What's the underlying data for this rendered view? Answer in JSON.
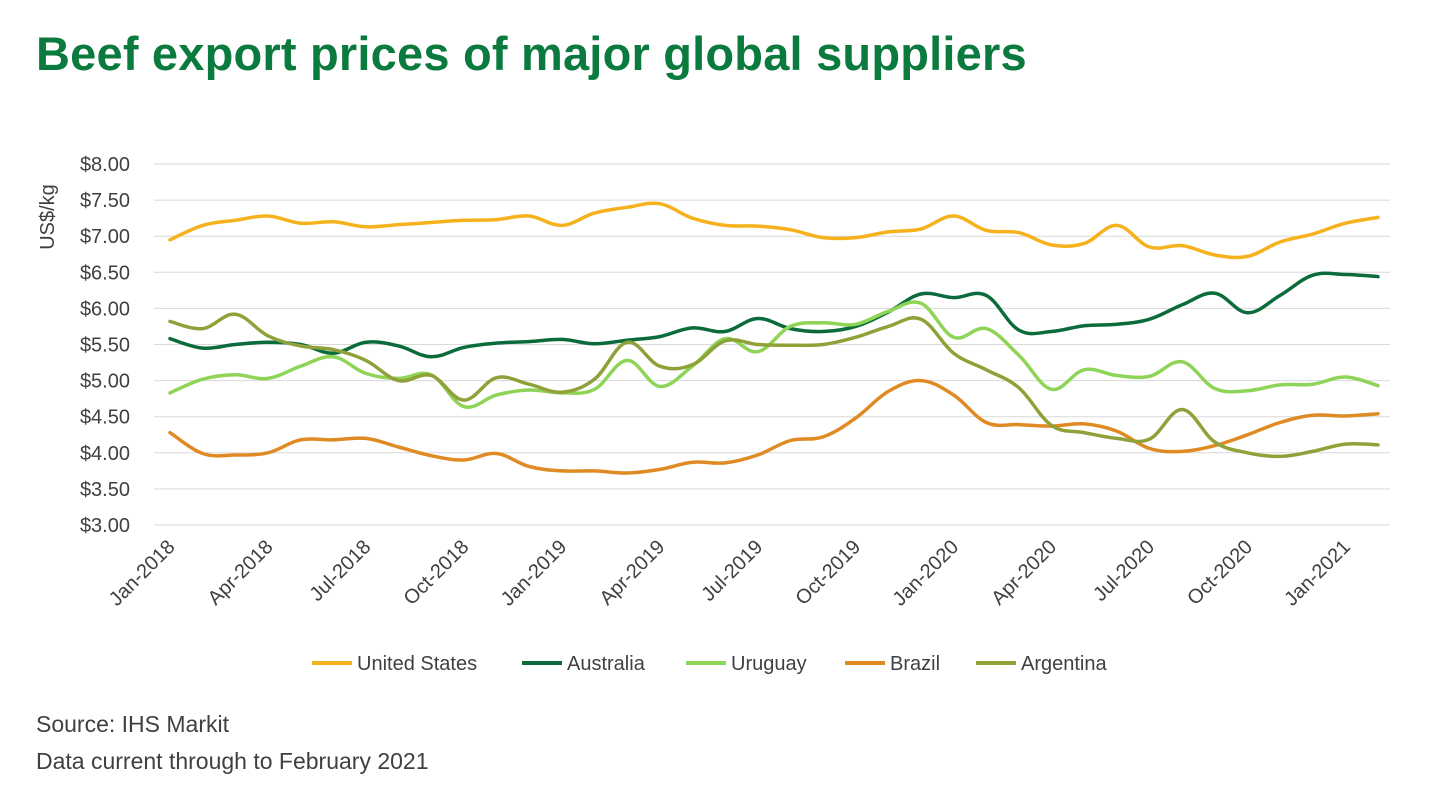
{
  "title": "Beef export prices of major global suppliers",
  "footnotes": {
    "source": "Source: IHS Markit",
    "currency": "Data current through to February 2021"
  },
  "chart_data": {
    "type": "line",
    "ylabel": "US$/kg",
    "xlabel": "",
    "ylim": [
      3.0,
      8.0
    ],
    "grid": true,
    "legend_position": "bottom",
    "y_ticks": [
      "$3.00",
      "$3.50",
      "$4.00",
      "$4.50",
      "$5.00",
      "$5.50",
      "$6.00",
      "$6.50",
      "$7.00",
      "$7.50",
      "$8.00"
    ],
    "x": [
      "Jan-2018",
      "Feb-2018",
      "Mar-2018",
      "Apr-2018",
      "May-2018",
      "Jun-2018",
      "Jul-2018",
      "Aug-2018",
      "Sep-2018",
      "Oct-2018",
      "Nov-2018",
      "Dec-2018",
      "Jan-2019",
      "Feb-2019",
      "Mar-2019",
      "Apr-2019",
      "May-2019",
      "Jun-2019",
      "Jul-2019",
      "Aug-2019",
      "Sep-2019",
      "Oct-2019",
      "Nov-2019",
      "Dec-2019",
      "Jan-2020",
      "Feb-2020",
      "Mar-2020",
      "Apr-2020",
      "May-2020",
      "Jun-2020",
      "Jul-2020",
      "Aug-2020",
      "Sep-2020",
      "Oct-2020",
      "Nov-2020",
      "Dec-2020",
      "Jan-2021",
      "Feb-2021"
    ],
    "x_tick_labels": [
      "Jan-2018",
      "Apr-2018",
      "Jul-2018",
      "Oct-2018",
      "Jan-2019",
      "Apr-2019",
      "Jul-2019",
      "Oct-2019",
      "Jan-2020",
      "Apr-2020",
      "Jul-2020",
      "Oct-2020",
      "Jan-2021"
    ],
    "series": [
      {
        "name": "United States",
        "color": "#f5b21c",
        "values": [
          6.95,
          7.15,
          7.22,
          7.28,
          7.18,
          7.2,
          7.13,
          7.16,
          7.19,
          7.22,
          7.23,
          7.28,
          7.15,
          7.32,
          7.4,
          7.45,
          7.25,
          7.15,
          7.14,
          7.09,
          6.98,
          6.98,
          7.06,
          7.1,
          7.28,
          7.08,
          7.05,
          6.88,
          6.9,
          7.15,
          6.85,
          6.87,
          6.74,
          6.72,
          6.92,
          7.03,
          7.18,
          7.26
        ]
      },
      {
        "name": "Australia",
        "color": "#0b6b3a",
        "values": [
          5.58,
          5.45,
          5.5,
          5.53,
          5.5,
          5.38,
          5.53,
          5.48,
          5.33,
          5.46,
          5.52,
          5.54,
          5.57,
          5.51,
          5.56,
          5.61,
          5.73,
          5.68,
          5.86,
          5.72,
          5.68,
          5.75,
          5.95,
          6.2,
          6.15,
          6.18,
          5.7,
          5.68,
          5.76,
          5.78,
          5.85,
          6.05,
          6.21,
          5.94,
          6.18,
          6.46,
          6.47,
          6.44
        ]
      },
      {
        "name": "Uruguay",
        "color": "#8ed457",
        "values": [
          4.83,
          5.02,
          5.08,
          5.03,
          5.2,
          5.33,
          5.1,
          5.03,
          5.08,
          4.64,
          4.8,
          4.87,
          4.83,
          4.88,
          5.28,
          4.92,
          5.2,
          5.58,
          5.4,
          5.75,
          5.8,
          5.78,
          5.96,
          6.07,
          5.6,
          5.72,
          5.35,
          4.88,
          5.15,
          5.07,
          5.06,
          5.26,
          4.89,
          4.86,
          4.94,
          4.95,
          5.05,
          4.93
        ]
      },
      {
        "name": "Brazil",
        "color": "#e08a24",
        "values": [
          4.28,
          3.99,
          3.97,
          4.0,
          4.18,
          4.18,
          4.2,
          4.08,
          3.96,
          3.9,
          3.99,
          3.81,
          3.75,
          3.75,
          3.72,
          3.77,
          3.87,
          3.86,
          3.97,
          4.17,
          4.22,
          4.48,
          4.85,
          5.0,
          4.8,
          4.42,
          4.39,
          4.37,
          4.4,
          4.3,
          4.06,
          4.02,
          4.1,
          4.25,
          4.42,
          4.52,
          4.51,
          4.54
        ]
      },
      {
        "name": "Argentina",
        "color": "#8fa23a",
        "values": [
          5.82,
          5.72,
          5.92,
          5.62,
          5.48,
          5.43,
          5.28,
          5.0,
          5.07,
          4.73,
          5.04,
          4.95,
          4.84,
          5.02,
          5.53,
          5.2,
          5.22,
          5.55,
          5.5,
          5.49,
          5.5,
          5.6,
          5.75,
          5.85,
          5.38,
          5.15,
          4.9,
          4.38,
          4.28,
          4.2,
          4.19,
          4.6,
          4.15,
          4.0,
          3.95,
          4.02,
          4.12,
          4.11
        ]
      }
    ]
  }
}
